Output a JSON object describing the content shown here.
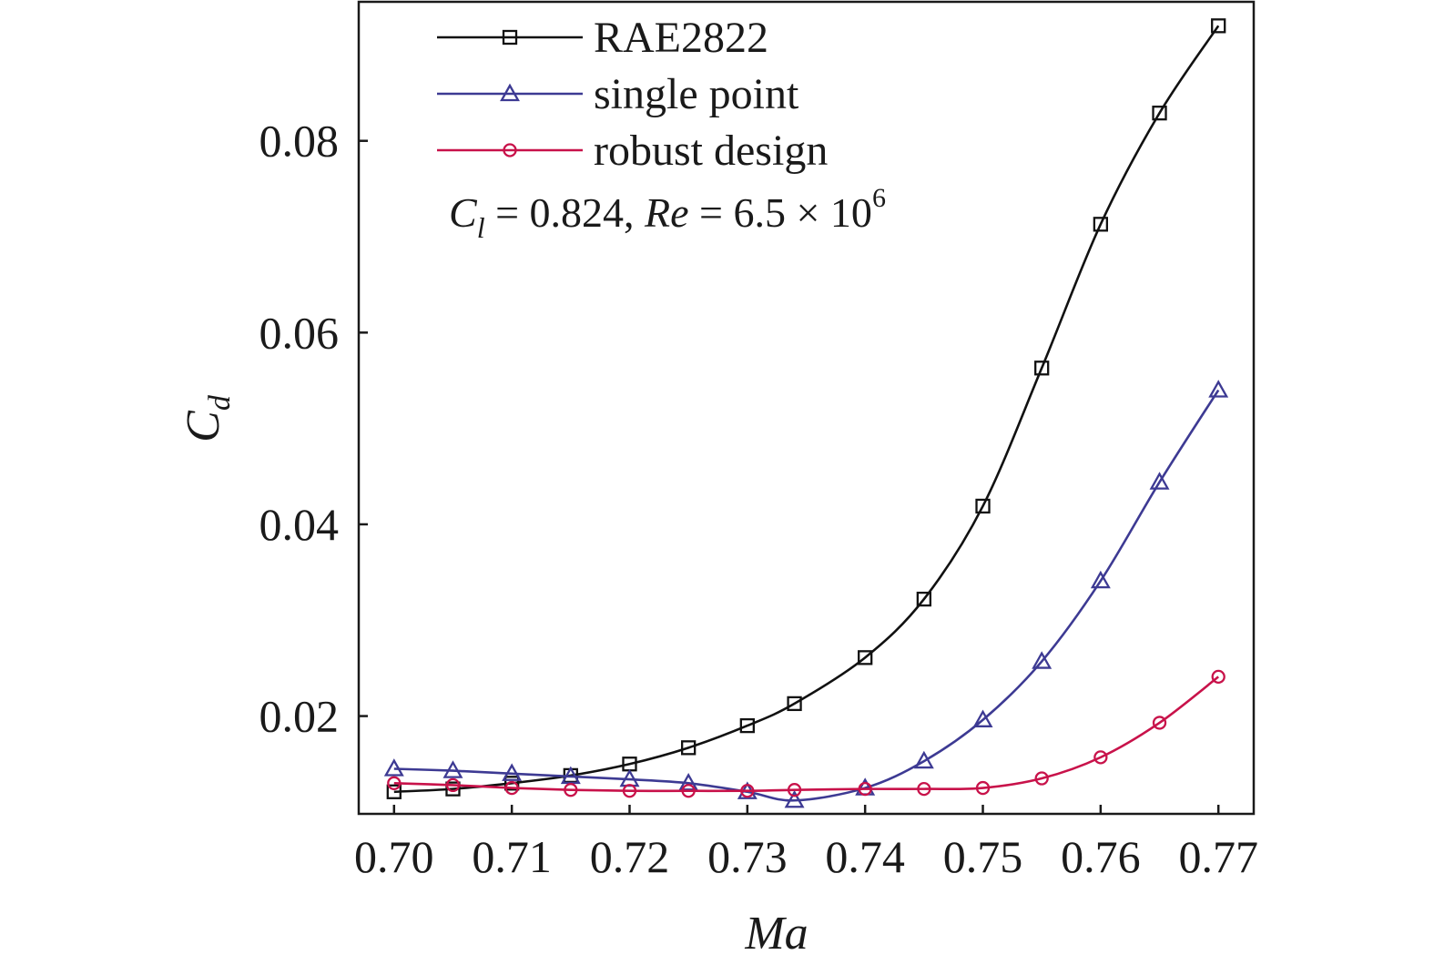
{
  "chart_data": {
    "type": "line",
    "xlabel": {
      "main": "Ma"
    },
    "ylabel": {
      "main": "C",
      "sub": "d"
    },
    "xlim": [
      0.697,
      0.773
    ],
    "ylim": [
      0.0098,
      0.0945
    ],
    "x_ticks": [
      0.7,
      0.71,
      0.72,
      0.73,
      0.74,
      0.75,
      0.76,
      0.77
    ],
    "x_tick_labels": [
      "0.70",
      "0.71",
      "0.72",
      "0.73",
      "0.74",
      "0.75",
      "0.76",
      "0.77"
    ],
    "y_ticks": [
      0.02,
      0.04,
      0.06,
      0.08
    ],
    "y_tick_labels": [
      "0.02",
      "0.04",
      "0.06",
      "0.08"
    ],
    "grid": false,
    "legend_position": "top-left",
    "annotation": {
      "cl_symbol": "C",
      "cl_sub": "l",
      "cl_value": " = 0.824, ",
      "re_symbol": "Re",
      "re_value": " = 6.5 × 10",
      "re_exp": "6"
    },
    "series": [
      {
        "name": "RAE2822",
        "color": "#111111",
        "marker": "square",
        "x": [
          0.7,
          0.705,
          0.71,
          0.715,
          0.72,
          0.725,
          0.73,
          0.734,
          0.74,
          0.745,
          0.75,
          0.755,
          0.76,
          0.765,
          0.77
        ],
        "y": [
          0.0121,
          0.0124,
          0.013,
          0.0138,
          0.015,
          0.0167,
          0.019,
          0.0213,
          0.0261,
          0.0322,
          0.0419,
          0.0563,
          0.0713,
          0.0829,
          0.092
        ]
      },
      {
        "name": "single point",
        "color": "#3d3a93",
        "marker": "triangle",
        "x": [
          0.7,
          0.705,
          0.71,
          0.715,
          0.72,
          0.725,
          0.73,
          0.734,
          0.74,
          0.745,
          0.75,
          0.755,
          0.76,
          0.765,
          0.77
        ],
        "y": [
          0.0145,
          0.0143,
          0.014,
          0.0137,
          0.0134,
          0.013,
          0.0121,
          0.0112,
          0.0125,
          0.0153,
          0.0196,
          0.0257,
          0.0341,
          0.0444,
          0.054
        ]
      },
      {
        "name": "robust design",
        "color": "#c8124a",
        "marker": "circle",
        "x": [
          0.7,
          0.705,
          0.71,
          0.715,
          0.72,
          0.725,
          0.73,
          0.734,
          0.74,
          0.745,
          0.75,
          0.755,
          0.76,
          0.765,
          0.77
        ],
        "y": [
          0.013,
          0.0128,
          0.0125,
          0.0123,
          0.0122,
          0.0122,
          0.0122,
          0.0123,
          0.0124,
          0.0124,
          0.0125,
          0.0135,
          0.0157,
          0.0193,
          0.0241
        ]
      }
    ]
  }
}
